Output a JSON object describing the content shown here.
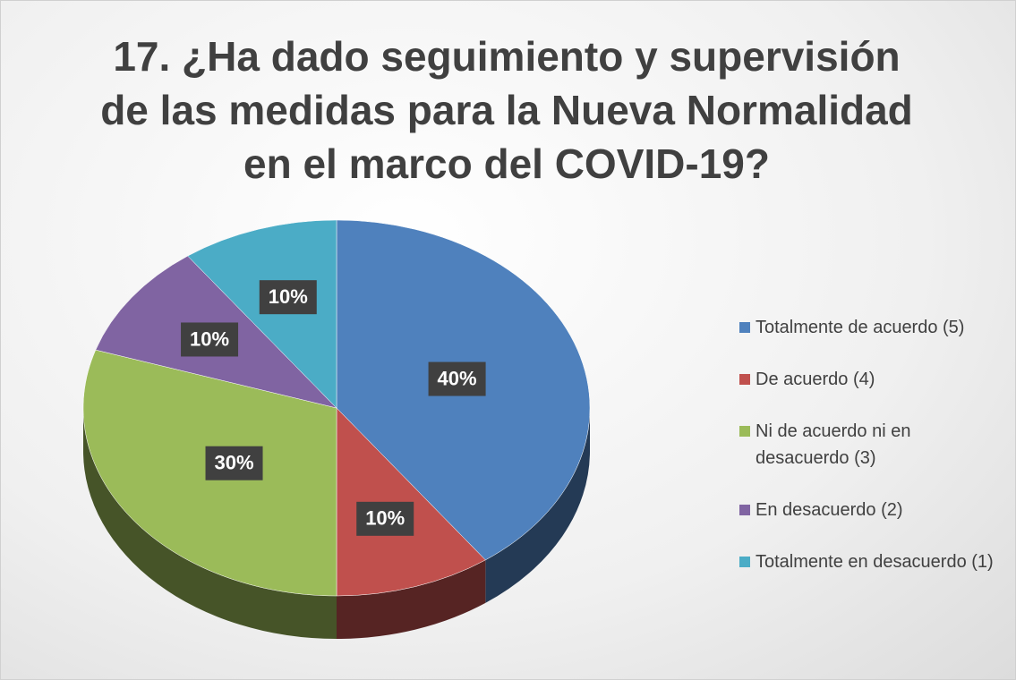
{
  "chart_data": {
    "type": "pie",
    "title": "17. ¿Ha dado seguimiento y supervisión de las medidas para la Nueva Normalidad en el marco del COVID-19?",
    "categories": [
      "Totalmente de acuerdo (5)",
      "De acuerdo (4)",
      "Ni de acuerdo ni en desacuerdo (3)",
      "En desacuerdo (2)",
      "Totalmente en desacuerdo (1)"
    ],
    "values": [
      40,
      10,
      30,
      10,
      10
    ],
    "value_labels": [
      "40%",
      "10%",
      "30%",
      "10%",
      "10%"
    ],
    "colors": [
      "#4f81bd",
      "#c0504d",
      "#9bbb59",
      "#8064a2",
      "#4bacc6"
    ],
    "legend": "right"
  }
}
